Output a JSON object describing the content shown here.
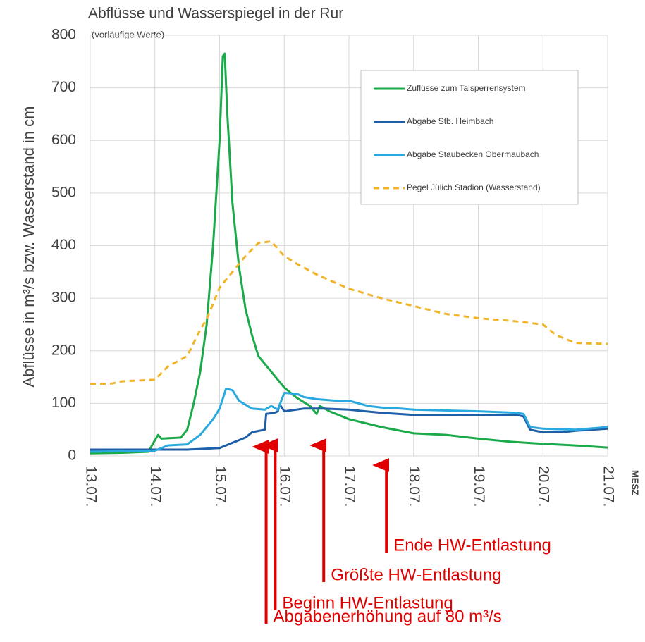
{
  "chart_data": {
    "type": "line",
    "title": "Abflüsse und Wasserspiegel in der Rur",
    "subtitle": "(vorläufige Werte)",
    "y_label": "Abflüsse in m³/s bzw. Wasserstand in cm",
    "x_label": "MESZ",
    "xlim": [
      13,
      21
    ],
    "xticks": [
      {
        "value": 13,
        "label": "13.07."
      },
      {
        "value": 14,
        "label": "14.07."
      },
      {
        "value": 15,
        "label": "15.07."
      },
      {
        "value": 16,
        "label": "16.07."
      },
      {
        "value": 17,
        "label": "17.07."
      },
      {
        "value": 18,
        "label": "18.07."
      },
      {
        "value": 19,
        "label": "19.07."
      },
      {
        "value": 20,
        "label": "20.07."
      },
      {
        "value": 21,
        "label": "21.07."
      }
    ],
    "ylim": [
      0,
      800
    ],
    "yticks": [
      0,
      100,
      200,
      300,
      400,
      500,
      600,
      700,
      800
    ],
    "grid": true,
    "legend": "upper right",
    "series": [
      {
        "name": "Zuflüsse zum Talsperrensystem",
        "color": "#1aaa4a",
        "dashed": false,
        "x": [
          13.0,
          13.5,
          13.9,
          14.0,
          14.05,
          14.1,
          14.4,
          14.5,
          14.6,
          14.7,
          14.8,
          14.9,
          15.0,
          15.05,
          15.08,
          15.12,
          15.2,
          15.3,
          15.4,
          15.5,
          15.6,
          15.8,
          16.0,
          16.2,
          16.4,
          16.5,
          16.55,
          16.7,
          17.0,
          17.5,
          18.0,
          18.5,
          19.0,
          19.5,
          20.0,
          20.5,
          21.0
        ],
        "values": [
          5,
          6,
          8,
          30,
          40,
          33,
          35,
          50,
          100,
          160,
          250,
          400,
          600,
          760,
          765,
          650,
          480,
          360,
          280,
          230,
          190,
          160,
          130,
          110,
          95,
          80,
          95,
          85,
          70,
          55,
          43,
          40,
          33,
          27,
          23,
          20,
          16
        ]
      },
      {
        "name": "Abgabe Stb. Heimbach",
        "color": "#1f5fa8",
        "dashed": false,
        "x": [
          13.0,
          14.0,
          14.5,
          15.0,
          15.2,
          15.3,
          15.4,
          15.5,
          15.7,
          15.72,
          15.85,
          15.9,
          15.93,
          16.0,
          16.3,
          16.6,
          17.0,
          17.5,
          18.0,
          19.0,
          19.6,
          19.7,
          19.8,
          20.0,
          20.3,
          20.5,
          21.0
        ],
        "values": [
          12,
          12,
          12,
          15,
          25,
          30,
          35,
          45,
          50,
          80,
          82,
          85,
          98,
          85,
          90,
          90,
          88,
          82,
          78,
          78,
          78,
          75,
          50,
          45,
          45,
          48,
          52
        ]
      },
      {
        "name": "Abgabe Staubecken Obermaubach",
        "color": "#29a9e0",
        "dashed": false,
        "x": [
          13.0,
          14.0,
          14.2,
          14.5,
          14.7,
          14.9,
          15.0,
          15.1,
          15.2,
          15.3,
          15.5,
          15.7,
          15.8,
          15.9,
          16.0,
          16.2,
          16.3,
          16.5,
          16.8,
          17.0,
          17.3,
          17.5,
          17.8,
          18.0,
          19.0,
          19.6,
          19.7,
          19.8,
          20.0,
          20.5,
          21.0
        ],
        "values": [
          8,
          10,
          20,
          22,
          40,
          70,
          90,
          128,
          125,
          105,
          90,
          88,
          95,
          88,
          120,
          118,
          112,
          108,
          105,
          105,
          95,
          92,
          90,
          88,
          85,
          82,
          80,
          55,
          52,
          50,
          55
        ]
      },
      {
        "name": "Pegel Jülich Stadion (Wasserstand)",
        "color": "#f0b429",
        "dashed": true,
        "x": [
          13.0,
          13.3,
          13.5,
          14.0,
          14.2,
          14.5,
          14.7,
          14.8,
          15.0,
          15.2,
          15.4,
          15.6,
          15.8,
          16.0,
          16.2,
          16.5,
          17.0,
          17.5,
          18.0,
          18.5,
          19.0,
          19.5,
          20.0,
          20.2,
          20.5,
          21.0
        ],
        "values": [
          137,
          137,
          142,
          145,
          170,
          190,
          240,
          260,
          320,
          350,
          380,
          405,
          408,
          380,
          365,
          345,
          318,
          300,
          285,
          270,
          262,
          257,
          250,
          230,
          215,
          213
        ]
      }
    ],
    "annotations": [
      {
        "text": "Abgabenerhöhung auf 80 m³/s",
        "x": 15.72
      },
      {
        "text": "Beginn HW-Entlastung",
        "x": 15.86
      },
      {
        "text": "Größte HW-Entlastung",
        "x": 16.61
      },
      {
        "text": "Ende HW-Entlastung",
        "x": 17.58
      }
    ]
  }
}
